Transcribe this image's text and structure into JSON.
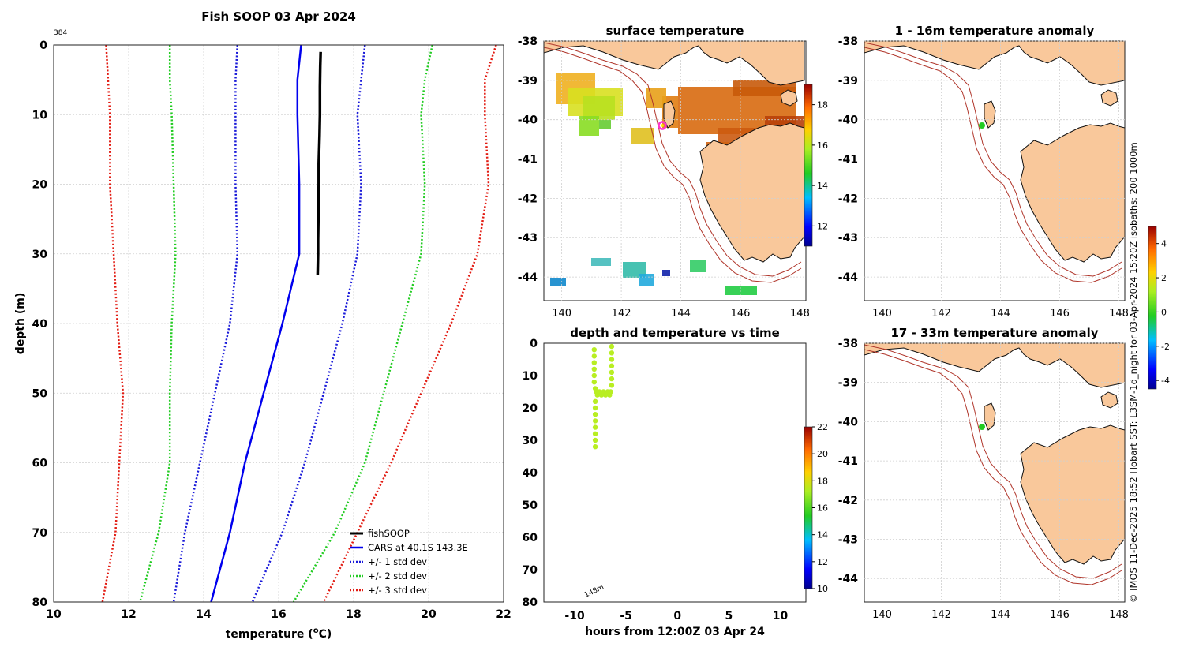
{
  "colors": {
    "fishsoop": "#000000",
    "cars": "#0000ee",
    "std1": "#1a1ad9",
    "std2": "#22cc22",
    "std3": "#e21b12",
    "land": "#f9c89b",
    "isobath": "#b0362b",
    "marker_green": "#22cc22",
    "marker_pink": "#ff33cc"
  },
  "profile": {
    "title": "Fish SOOP 03 Apr 2024",
    "id_label": "384",
    "xlabel_prefix": "temperature (",
    "xlabel_unit": "o",
    "xlabel_suffix": "C)",
    "ylabel": "depth (m)",
    "legend": [
      {
        "label": "fishSOOP",
        "style": "solid",
        "color": "#000000"
      },
      {
        "label": "CARS at 40.1S 143.3E",
        "style": "solid",
        "color": "#0000ee"
      },
      {
        "label": "+/- 1 std dev",
        "style": "dotted",
        "color": "#1a1ad9"
      },
      {
        "label": "+/- 2 std dev",
        "style": "dotted",
        "color": "#22cc22"
      },
      {
        "label": "+/- 3 std dev",
        "style": "dotted",
        "color": "#e21b12"
      }
    ]
  },
  "map_sst": {
    "title": "surface temperature",
    "colorbar_ticks": [
      "18",
      "16",
      "14",
      "12"
    ]
  },
  "map_anom1": {
    "title": "1 - 16m temperature anomaly"
  },
  "map_anom2": {
    "title": "17 - 33m temperature anomaly"
  },
  "anom_colorbar_ticks": [
    "4",
    "2",
    "0",
    "-2",
    "-4"
  ],
  "time_panel": {
    "title": "depth and temperature vs time",
    "xlabel": "hours from 12:00Z 03 Apr 24",
    "bottom_label": "148m",
    "colorbar_ticks": [
      "22",
      "20",
      "18",
      "16",
      "14",
      "12",
      "10"
    ]
  },
  "credit": "© IMOS 11-Dec-2025 18:52 Hobart SST: L3SM-1d_night for 03-Apr-2024 15:20Z isobaths: 200  1000m",
  "chart_data": [
    {
      "type": "line",
      "name": "profile",
      "title": "Fish SOOP 03 Apr 2024",
      "xlabel": "temperature (oC)",
      "ylabel": "depth (m)",
      "xlim": [
        10,
        22
      ],
      "ylim": [
        80,
        0
      ],
      "xticks": [
        10,
        12,
        14,
        16,
        18,
        20,
        22
      ],
      "yticks": [
        0,
        10,
        20,
        30,
        40,
        50,
        60,
        70,
        80
      ],
      "grid": true,
      "legend_position": "bottom-right",
      "series": [
        {
          "name": "fishSOOP",
          "depth": [
            1,
            3,
            6,
            10,
            13,
            15,
            17,
            20,
            25,
            28,
            30,
            33
          ],
          "temp": [
            17.12,
            17.11,
            17.1,
            17.1,
            17.09,
            17.08,
            17.07,
            17.07,
            17.06,
            17.05,
            17.05,
            17.04
          ]
        },
        {
          "name": "CARS at 40.1S 143.3E",
          "depth": [
            0,
            5,
            10,
            20,
            30,
            40,
            50,
            60,
            70,
            80
          ],
          "temp": [
            16.6,
            16.5,
            16.5,
            16.55,
            16.55,
            16.1,
            15.6,
            15.1,
            14.7,
            14.2
          ]
        },
        {
          "name": "+1 std dev",
          "depth": [
            0,
            5,
            10,
            20,
            30,
            40,
            50,
            60,
            70,
            80
          ],
          "temp": [
            18.3,
            18.2,
            18.1,
            18.2,
            18.1,
            17.7,
            17.2,
            16.7,
            16.1,
            15.3
          ]
        },
        {
          "name": "-1 std dev",
          "depth": [
            0,
            5,
            10,
            20,
            30,
            40,
            50,
            60,
            70,
            80
          ],
          "temp": [
            14.9,
            14.85,
            14.85,
            14.85,
            14.9,
            14.7,
            14.3,
            13.9,
            13.5,
            13.2
          ]
        },
        {
          "name": "+2 std dev",
          "depth": [
            0,
            5,
            10,
            20,
            30,
            40,
            50,
            60,
            70,
            80
          ],
          "temp": [
            20.1,
            19.9,
            19.8,
            19.9,
            19.8,
            19.3,
            18.8,
            18.3,
            17.5,
            16.4
          ]
        },
        {
          "name": "-2 std dev",
          "depth": [
            0,
            5,
            10,
            20,
            30,
            40,
            50,
            60,
            70,
            80
          ],
          "temp": [
            13.1,
            13.1,
            13.15,
            13.2,
            13.25,
            13.15,
            13.1,
            13.1,
            12.8,
            12.3
          ]
        },
        {
          "name": "+3 std dev",
          "depth": [
            0,
            5,
            10,
            20,
            30,
            40,
            50,
            60,
            70,
            80
          ],
          "temp": [
            21.8,
            21.5,
            21.5,
            21.6,
            21.3,
            20.6,
            19.8,
            19.0,
            18.1,
            17.2
          ]
        },
        {
          "name": "-3 std dev",
          "depth": [
            0,
            5,
            10,
            20,
            30,
            40,
            50,
            60,
            70,
            80
          ],
          "temp": [
            11.4,
            11.45,
            11.5,
            11.5,
            11.6,
            11.7,
            11.85,
            11.75,
            11.65,
            11.3
          ]
        }
      ]
    },
    {
      "type": "heatmap",
      "name": "surface temperature map",
      "title": "surface temperature",
      "xlim": [
        139.4,
        148.2
      ],
      "ylim": [
        -44.6,
        -38
      ],
      "xticks": [
        140,
        142,
        144,
        146,
        148
      ],
      "yticks": [
        -38,
        -39,
        -40,
        -41,
        -42,
        -43,
        -44
      ],
      "colorbar_range": [
        11,
        19
      ],
      "colorbar_ticks": [
        12,
        14,
        16,
        18
      ],
      "station": {
        "lon": 143.3,
        "lat": -40.1
      }
    },
    {
      "type": "scatter",
      "name": "depth and temperature vs time",
      "title": "depth and temperature vs time",
      "xlabel": "hours from 12:00Z 03 Apr 24",
      "xlim": [
        -13,
        12.5
      ],
      "ylim": [
        80,
        0
      ],
      "xticks": [
        -10,
        -5,
        0,
        5,
        10
      ],
      "yticks": [
        0,
        10,
        20,
        30,
        40,
        50,
        60,
        70,
        80
      ],
      "colorbar_range": [
        10,
        22
      ],
      "colorbar_ticks": [
        10,
        12,
        14,
        16,
        18,
        20,
        22
      ],
      "points": [
        {
          "hour": -8.1,
          "depth": 2
        },
        {
          "hour": -8.1,
          "depth": 4
        },
        {
          "hour": -8.1,
          "depth": 6
        },
        {
          "hour": -8.1,
          "depth": 8
        },
        {
          "hour": -8.1,
          "depth": 10
        },
        {
          "hour": -8.1,
          "depth": 12
        },
        {
          "hour": -8.0,
          "depth": 14
        },
        {
          "hour": -7.9,
          "depth": 15
        },
        {
          "hour": -7.8,
          "depth": 16
        },
        {
          "hour": -7.6,
          "depth": 15
        },
        {
          "hour": -7.4,
          "depth": 16
        },
        {
          "hour": -7.2,
          "depth": 15
        },
        {
          "hour": -7.0,
          "depth": 16
        },
        {
          "hour": -6.8,
          "depth": 15
        },
        {
          "hour": -6.6,
          "depth": 16
        },
        {
          "hour": -6.5,
          "depth": 15
        },
        {
          "hour": -6.4,
          "depth": 13
        },
        {
          "hour": -6.4,
          "depth": 11
        },
        {
          "hour": -6.4,
          "depth": 9
        },
        {
          "hour": -6.4,
          "depth": 7
        },
        {
          "hour": -6.4,
          "depth": 5
        },
        {
          "hour": -6.4,
          "depth": 3
        },
        {
          "hour": -6.4,
          "depth": 1
        },
        {
          "hour": -8.0,
          "depth": 18
        },
        {
          "hour": -8.0,
          "depth": 20
        },
        {
          "hour": -8.0,
          "depth": 22
        },
        {
          "hour": -8.0,
          "depth": 24
        },
        {
          "hour": -8.0,
          "depth": 26
        },
        {
          "hour": -8.0,
          "depth": 28
        },
        {
          "hour": -8.0,
          "depth": 30
        },
        {
          "hour": -8.0,
          "depth": 32
        }
      ],
      "temperature": 17.1
    },
    {
      "type": "map",
      "name": "1 - 16m temperature anomaly",
      "title": "1 - 16m temperature anomaly",
      "xlim": [
        139.4,
        148.2
      ],
      "ylim": [
        -44.6,
        -38
      ],
      "xticks": [
        140,
        142,
        144,
        146,
        148
      ],
      "yticks": [
        -38,
        -39,
        -40,
        -41,
        -42,
        -43,
        -44
      ],
      "colorbar_range": [
        -4.5,
        5
      ],
      "colorbar_ticks": [
        -4,
        -2,
        0,
        2,
        4
      ],
      "station": {
        "lon": 143.3,
        "lat": -40.1
      }
    },
    {
      "type": "map",
      "name": "17 - 33m temperature anomaly",
      "title": "17 - 33m temperature anomaly",
      "xlim": [
        139.4,
        148.2
      ],
      "ylim": [
        -44.6,
        -38
      ],
      "xticks": [
        140,
        142,
        144,
        146,
        148
      ],
      "yticks": [
        -38,
        -39,
        -40,
        -41,
        -42,
        -43,
        -44
      ],
      "station": {
        "lon": 143.3,
        "lat": -40.1
      }
    }
  ]
}
